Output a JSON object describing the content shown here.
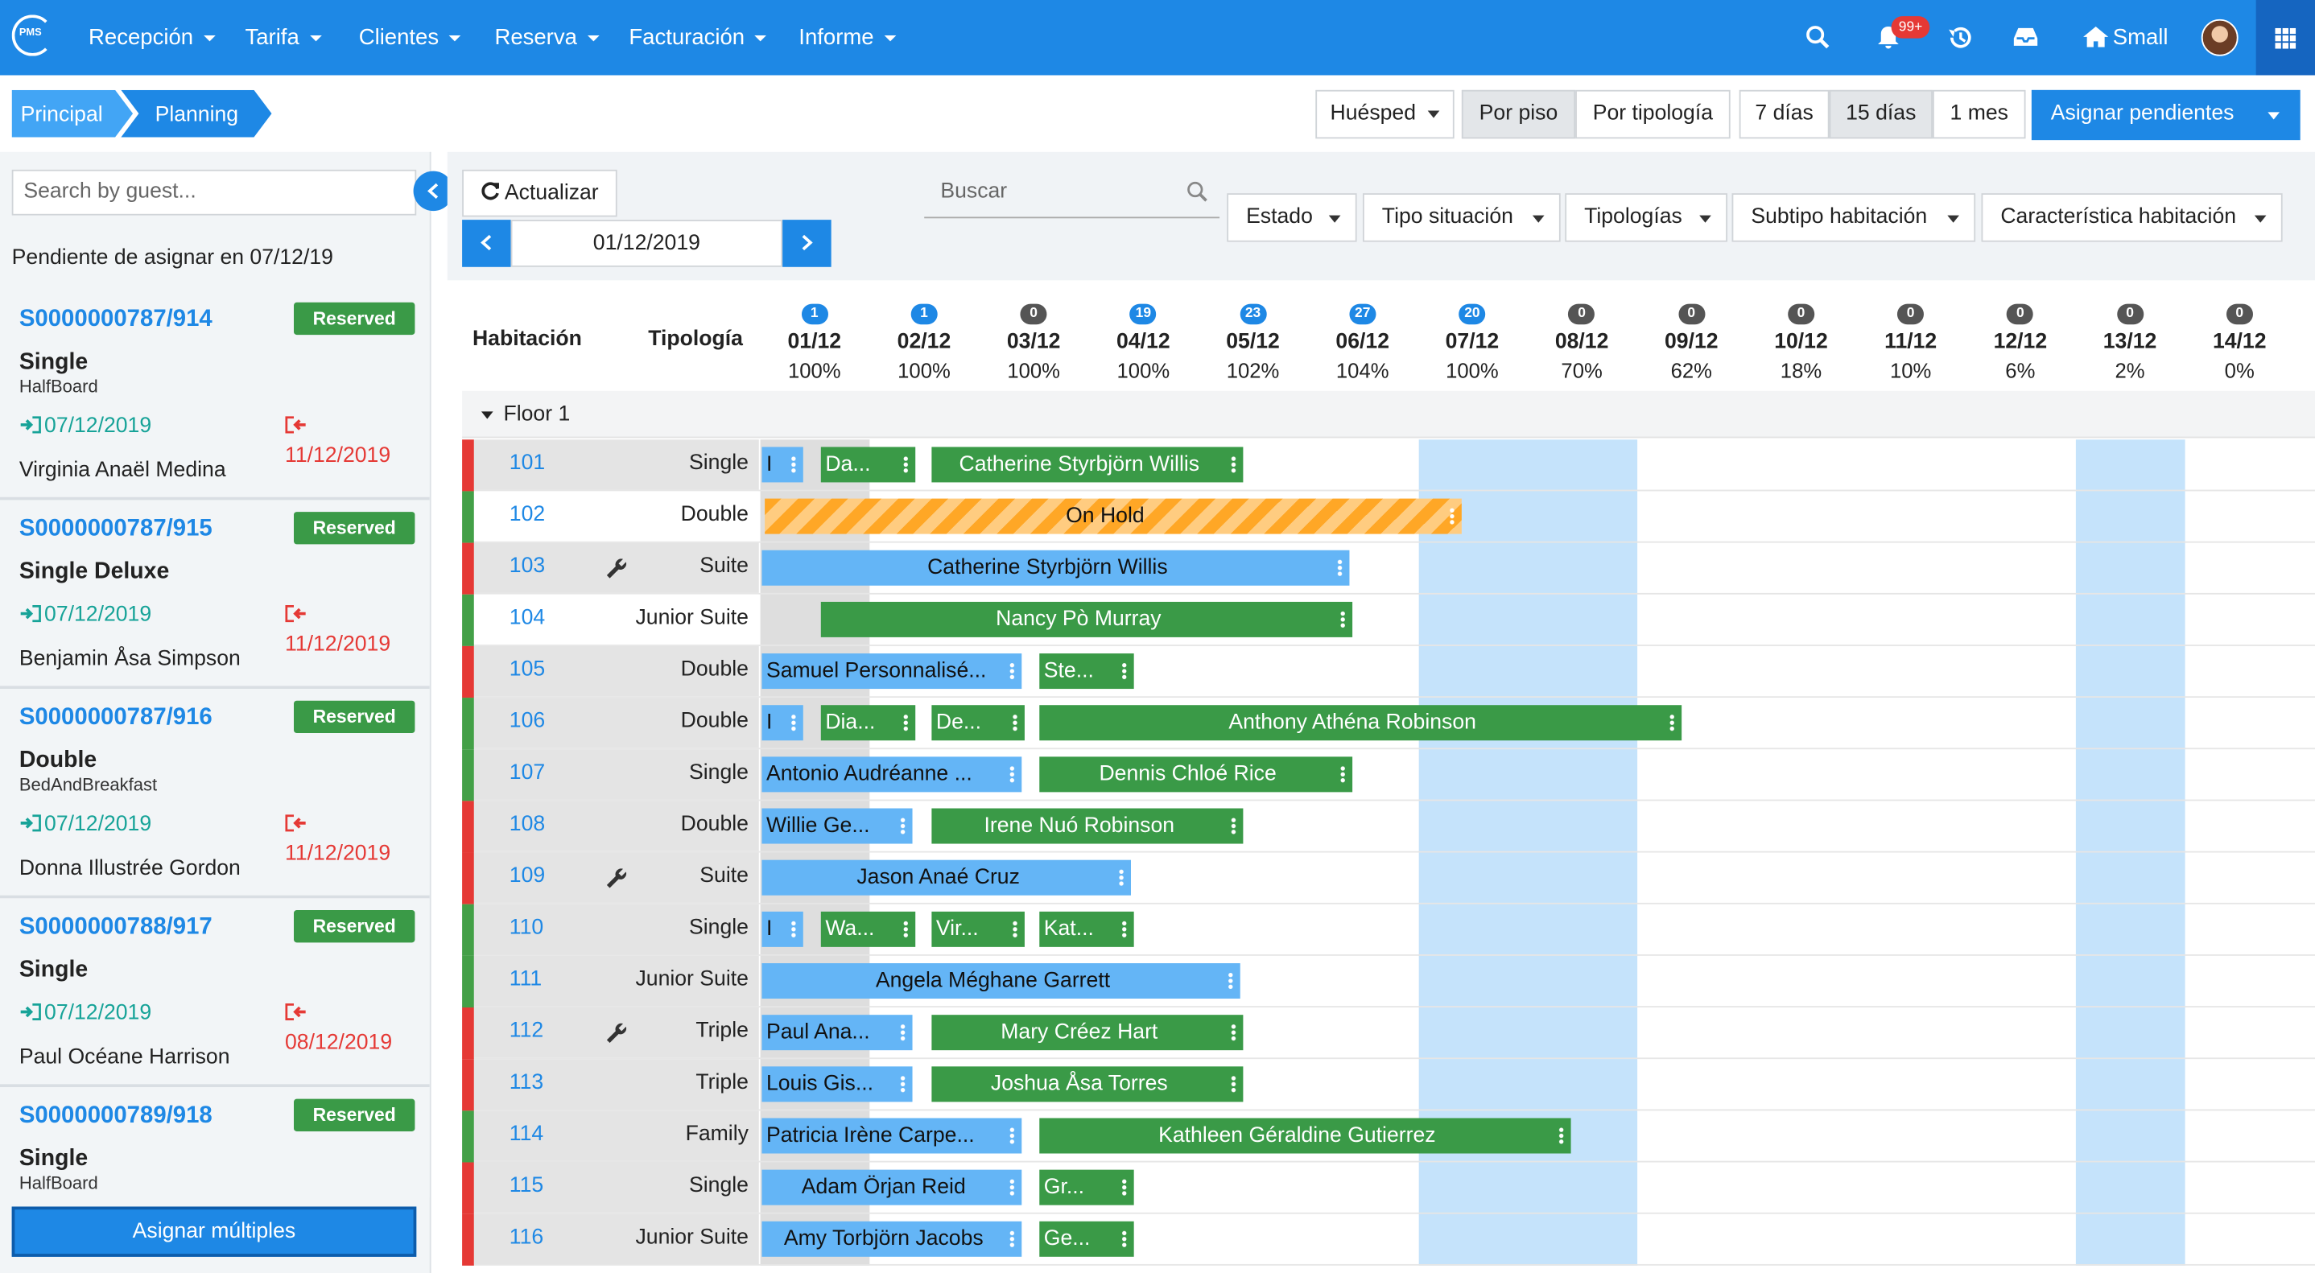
{
  "nav": {
    "logo": "PMS",
    "menu": [
      "Recepción",
      "Tarifa",
      "Clientes",
      "Reserva",
      "Facturación",
      "Informe"
    ],
    "notifications": "99+",
    "hotel": "Small"
  },
  "breadcrumb": [
    "Principal",
    "Planning"
  ],
  "toolbar": {
    "guest": "Huésped",
    "group_by": [
      "Por piso",
      "Por tipología"
    ],
    "range": [
      "7 días",
      "15 días",
      "1 mes"
    ],
    "assign": "Asignar pendientes"
  },
  "sidebar": {
    "search_placeholder": "Search by guest...",
    "pending_title": "Pendiente de asignar en 07/12/19",
    "cards": [
      {
        "code": "S0000000787/914",
        "status": "Reserved",
        "room_type": "Single",
        "board": "HalfBoard",
        "checkin": "07/12/2019",
        "checkout": "11/12/2019",
        "guest": "Virginia Anaël Medina"
      },
      {
        "code": "S0000000787/915",
        "status": "Reserved",
        "room_type": "Single Deluxe",
        "checkin": "07/12/2019",
        "checkout": "11/12/2019",
        "guest": "Benjamin Åsa Simpson"
      },
      {
        "code": "S0000000787/916",
        "status": "Reserved",
        "room_type": "Double",
        "board": "BedAndBreakfast",
        "checkin": "07/12/2019",
        "checkout": "11/12/2019",
        "guest": "Donna Illustrée Gordon"
      },
      {
        "code": "S0000000788/917",
        "status": "Reserved",
        "room_type": "Single",
        "checkin": "07/12/2019",
        "checkout": "08/12/2019",
        "guest": "Paul Océane Harrison"
      },
      {
        "code": "S0000000789/918",
        "status": "Reserved",
        "room_type": "Single",
        "board": "HalfBoard"
      }
    ],
    "assign_multiple": "Asignar múltiples"
  },
  "planning": {
    "refresh": "Actualizar",
    "date": "01/12/2019",
    "search_placeholder": "Buscar",
    "filters": [
      "Estado",
      "Tipo situación",
      "Tipologías",
      "Subtipo habitación",
      "Característica habitación"
    ],
    "columns": {
      "room": "Habitación",
      "type": "Tipología"
    },
    "days": [
      {
        "count": 1,
        "date": "01/12",
        "occupancy": "100%"
      },
      {
        "count": 1,
        "date": "02/12",
        "occupancy": "100%"
      },
      {
        "count": 0,
        "date": "03/12",
        "occupancy": "100%"
      },
      {
        "count": 19,
        "date": "04/12",
        "occupancy": "100%"
      },
      {
        "count": 23,
        "date": "05/12",
        "occupancy": "102%"
      },
      {
        "count": 27,
        "date": "06/12",
        "occupancy": "104%"
      },
      {
        "count": 20,
        "date": "07/12",
        "occupancy": "100%"
      },
      {
        "count": 0,
        "date": "08/12",
        "occupancy": "70%"
      },
      {
        "count": 0,
        "date": "09/12",
        "occupancy": "62%"
      },
      {
        "count": 0,
        "date": "10/12",
        "occupancy": "18%"
      },
      {
        "count": 0,
        "date": "11/12",
        "occupancy": "10%"
      },
      {
        "count": 0,
        "date": "12/12",
        "occupancy": "6%"
      },
      {
        "count": 0,
        "date": "13/12",
        "occupancy": "2%"
      },
      {
        "count": 0,
        "date": "14/12",
        "occupancy": "0%"
      }
    ],
    "groups": [
      {
        "name": "Floor 1",
        "rooms": [
          {
            "number": "101",
            "type": "Single",
            "bookings": [
              "I",
              "Da...",
              "Catherine Styrbjörn Willis"
            ]
          },
          {
            "number": "102",
            "type": "Double",
            "bookings": [
              "On Hold"
            ]
          },
          {
            "number": "103",
            "type": "Suite",
            "bookings": [
              "Catherine Styrbjörn Willis"
            ]
          },
          {
            "number": "104",
            "type": "Junior Suite",
            "bookings": [
              "Nancy Pò Murray"
            ]
          },
          {
            "number": "105",
            "type": "Double",
            "bookings": [
              "Samuel Personnalisé...",
              "Ste..."
            ]
          },
          {
            "number": "106",
            "type": "Double",
            "bookings": [
              "I",
              "Dia...",
              "De...",
              "Anthony Athéna Robinson"
            ]
          },
          {
            "number": "107",
            "type": "Single",
            "bookings": [
              "Antonio Audréanne ...",
              "Dennis Chloé Rice"
            ]
          },
          {
            "number": "108",
            "type": "Double",
            "bookings": [
              "Willie Ge...",
              "Irene Nuó Robinson"
            ]
          },
          {
            "number": "109",
            "type": "Suite",
            "bookings": [
              "Jason Anaé Cruz"
            ]
          },
          {
            "number": "110",
            "type": "Single",
            "bookings": [
              "I",
              "Wa...",
              "Vir...",
              "Kat..."
            ]
          },
          {
            "number": "111",
            "type": "Junior Suite",
            "bookings": [
              "Angela Méghane Garrett"
            ]
          },
          {
            "number": "112",
            "type": "Triple",
            "bookings": [
              "Paul Ana...",
              "Mary Créez Hart"
            ]
          },
          {
            "number": "113",
            "type": "Triple",
            "bookings": [
              "Louis Gis...",
              "Joshua Åsa Torres"
            ]
          },
          {
            "number": "114",
            "type": "Family",
            "bookings": [
              "Patricia Irène Carpe...",
              "Kathleen Géraldine Gutierrez"
            ]
          },
          {
            "number": "115",
            "type": "Single",
            "bookings": [
              "Adam Örjan Reid",
              "Gr..."
            ]
          },
          {
            "number": "116",
            "type": "Junior Suite",
            "bookings": [
              "Amy Torbjörn Jacobs",
              "Ge..."
            ]
          }
        ]
      }
    ]
  }
}
